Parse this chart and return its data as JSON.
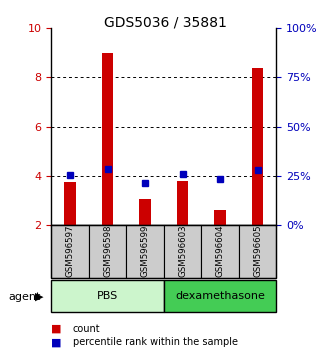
{
  "title": "GDS5036 / 35881",
  "samples": [
    "GSM596597",
    "GSM596598",
    "GSM596599",
    "GSM596603",
    "GSM596604",
    "GSM596605"
  ],
  "count_values": [
    3.75,
    9.0,
    3.05,
    3.8,
    2.6,
    8.4
  ],
  "percentile_values": [
    25.5,
    28.5,
    21.5,
    26.0,
    23.5,
    28.0
  ],
  "ymin": 2,
  "ymax": 10,
  "yticks_left": [
    2,
    4,
    6,
    8,
    10
  ],
  "yticks_right": [
    0,
    25,
    50,
    75,
    100
  ],
  "count_color": "#cc0000",
  "percentile_color": "#0000bb",
  "pbs_color": "#ccf5cc",
  "dexa_color": "#44cc55",
  "agent_label": "agent",
  "legend_count": "count",
  "legend_percentile": "percentile rank within the sample",
  "sample_box_color": "#cccccc",
  "bar_width": 0.3,
  "fig_width": 3.31,
  "fig_height": 3.54,
  "dpi": 100
}
